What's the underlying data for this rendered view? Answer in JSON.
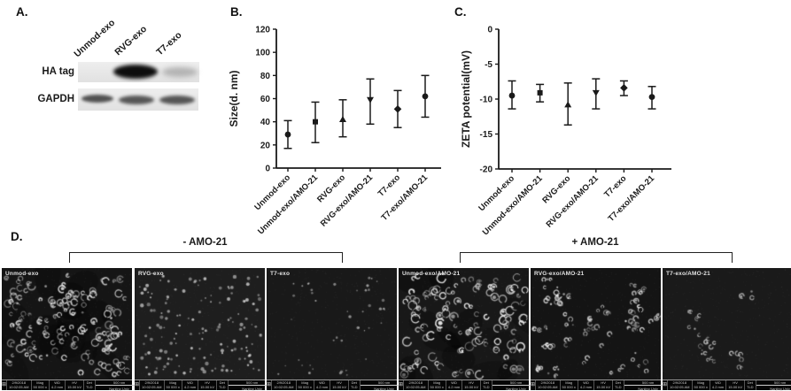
{
  "panels": {
    "a": {
      "label": "A.",
      "lanes": [
        "Unmod-exo",
        "RVG-exo",
        "T7-exo"
      ],
      "rows": [
        "HA tag",
        "GAPDH"
      ],
      "band_pattern": [
        {
          "row": "HA tag",
          "lanes": [
            "absent",
            "strong",
            "weak"
          ]
        },
        {
          "row": "GAPDH",
          "lanes": [
            "medium",
            "medium",
            "medium"
          ]
        }
      ]
    },
    "b": {
      "label": "B."
    },
    "c": {
      "label": "C."
    },
    "d": {
      "label": "D.",
      "groups": [
        {
          "label": "- AMO-21"
        },
        {
          "label": "+ AMO-21"
        }
      ]
    }
  },
  "chart_data": [
    {
      "type": "scatter",
      "panel": "B",
      "title": "",
      "xlabel": "",
      "ylabel": "Size(d. nm)",
      "ylim": [
        0,
        120
      ],
      "yticks": [
        0,
        20,
        40,
        60,
        80,
        100,
        120
      ],
      "grid": false,
      "categories": [
        "Unmod-exo",
        "Unmod-exo/AMO-21",
        "RVG-exo",
        "RVG-exo/AMO-21",
        "T7-exo",
        "T7-exo/AMO-21"
      ],
      "points": [
        {
          "mean": 29,
          "err": [
            17,
            41
          ],
          "marker": "circle"
        },
        {
          "mean": 40,
          "err": [
            22,
            57
          ],
          "marker": "square"
        },
        {
          "mean": 42,
          "err": [
            27,
            59
          ],
          "marker": "triangle"
        },
        {
          "mean": 59,
          "err": [
            38,
            77
          ],
          "marker": "triangle-down"
        },
        {
          "mean": 51,
          "err": [
            35,
            67
          ],
          "marker": "diamond"
        },
        {
          "mean": 62,
          "err": [
            44,
            80
          ],
          "marker": "circle"
        }
      ]
    },
    {
      "type": "scatter",
      "panel": "C",
      "title": "",
      "xlabel": "",
      "ylabel": "ZETA potential(mV)",
      "ylim": [
        -20,
        0
      ],
      "yticks": [
        0,
        -5,
        -10,
        -15,
        -20
      ],
      "grid": false,
      "categories": [
        "Unmod-exo",
        "Unmod-exo/AMO-21",
        "RVG-exo",
        "RVG-exo/AMO-21",
        "T7-exo",
        "T7-exo/AMO-21"
      ],
      "points": [
        {
          "mean": -9.5,
          "err": [
            -11.4,
            -7.4
          ],
          "marker": "circle"
        },
        {
          "mean": -9.1,
          "err": [
            -10.4,
            -7.9
          ],
          "marker": "square"
        },
        {
          "mean": -10.8,
          "err": [
            -13.7,
            -7.7
          ],
          "marker": "triangle"
        },
        {
          "mean": -9.1,
          "err": [
            -11.4,
            -7.1
          ],
          "marker": "triangle-down"
        },
        {
          "mean": -8.4,
          "err": [
            -9.5,
            -7.4
          ],
          "marker": "diamond"
        },
        {
          "mean": -9.7,
          "err": [
            -11.4,
            -8.2
          ],
          "marker": "circle"
        }
      ]
    }
  ],
  "micrographs": [
    {
      "label": "Unmod-exo",
      "group": "- AMO-21",
      "render": {
        "seed": 11,
        "bg": "#151515",
        "mottle": 14,
        "style": "ring",
        "count": 140,
        "rmin": 1.2,
        "rmax": 4.2,
        "bright": 0.75,
        "clusters": 0
      }
    },
    {
      "label": "RVG-exo",
      "group": "- AMO-21",
      "render": {
        "seed": 22,
        "bg": "#1e1e1e",
        "mottle": 0,
        "style": "dot",
        "count": 150,
        "rmin": 0.8,
        "rmax": 2.2,
        "bright": 0.6,
        "clusters": 0
      }
    },
    {
      "label": "T7-exo",
      "group": "- AMO-21",
      "render": {
        "seed": 33,
        "bg": "#191919",
        "mottle": 0,
        "style": "dot",
        "count": 45,
        "rmin": 0.7,
        "rmax": 1.8,
        "bright": 0.45,
        "clusters": 0
      }
    },
    {
      "label": "Unmod-exo/AMO-21",
      "group": "+ AMO-21",
      "render": {
        "seed": 44,
        "bg": "#181818",
        "mottle": 14,
        "style": "ring",
        "count": 120,
        "rmin": 1.5,
        "rmax": 5.0,
        "bright": 0.9,
        "clusters": 0
      }
    },
    {
      "label": "RVG-exo/AMO-21",
      "group": "+ AMO-21",
      "render": {
        "seed": 55,
        "bg": "#141414",
        "mottle": 0,
        "style": "ring",
        "count": 95,
        "rmin": 1.0,
        "rmax": 2.8,
        "bright": 0.8,
        "clusters": 26
      }
    },
    {
      "label": "T7-exo/AMO-21",
      "group": "+ AMO-21",
      "render": {
        "seed": 66,
        "bg": "#1a1a1a",
        "mottle": 0,
        "style": "ring",
        "count": 34,
        "rmin": 1.0,
        "rmax": 2.6,
        "bright": 0.6,
        "clusters": 9,
        "region": [
          0.25,
          0.2,
          0.72,
          0.82
        ]
      }
    }
  ],
  "meta_bar": {
    "date": "2/9/2018",
    "time": "10:02:05 AM",
    "mag_label": "Mag",
    "mag": "50 000 x",
    "wd_label": "WD",
    "wd": "4.2 mm",
    "hv_label": "HV",
    "hv": "15.00 kV",
    "det_label": "Det",
    "det": "TLD",
    "scale": "500 nm",
    "org": "Nanjing Univ"
  }
}
